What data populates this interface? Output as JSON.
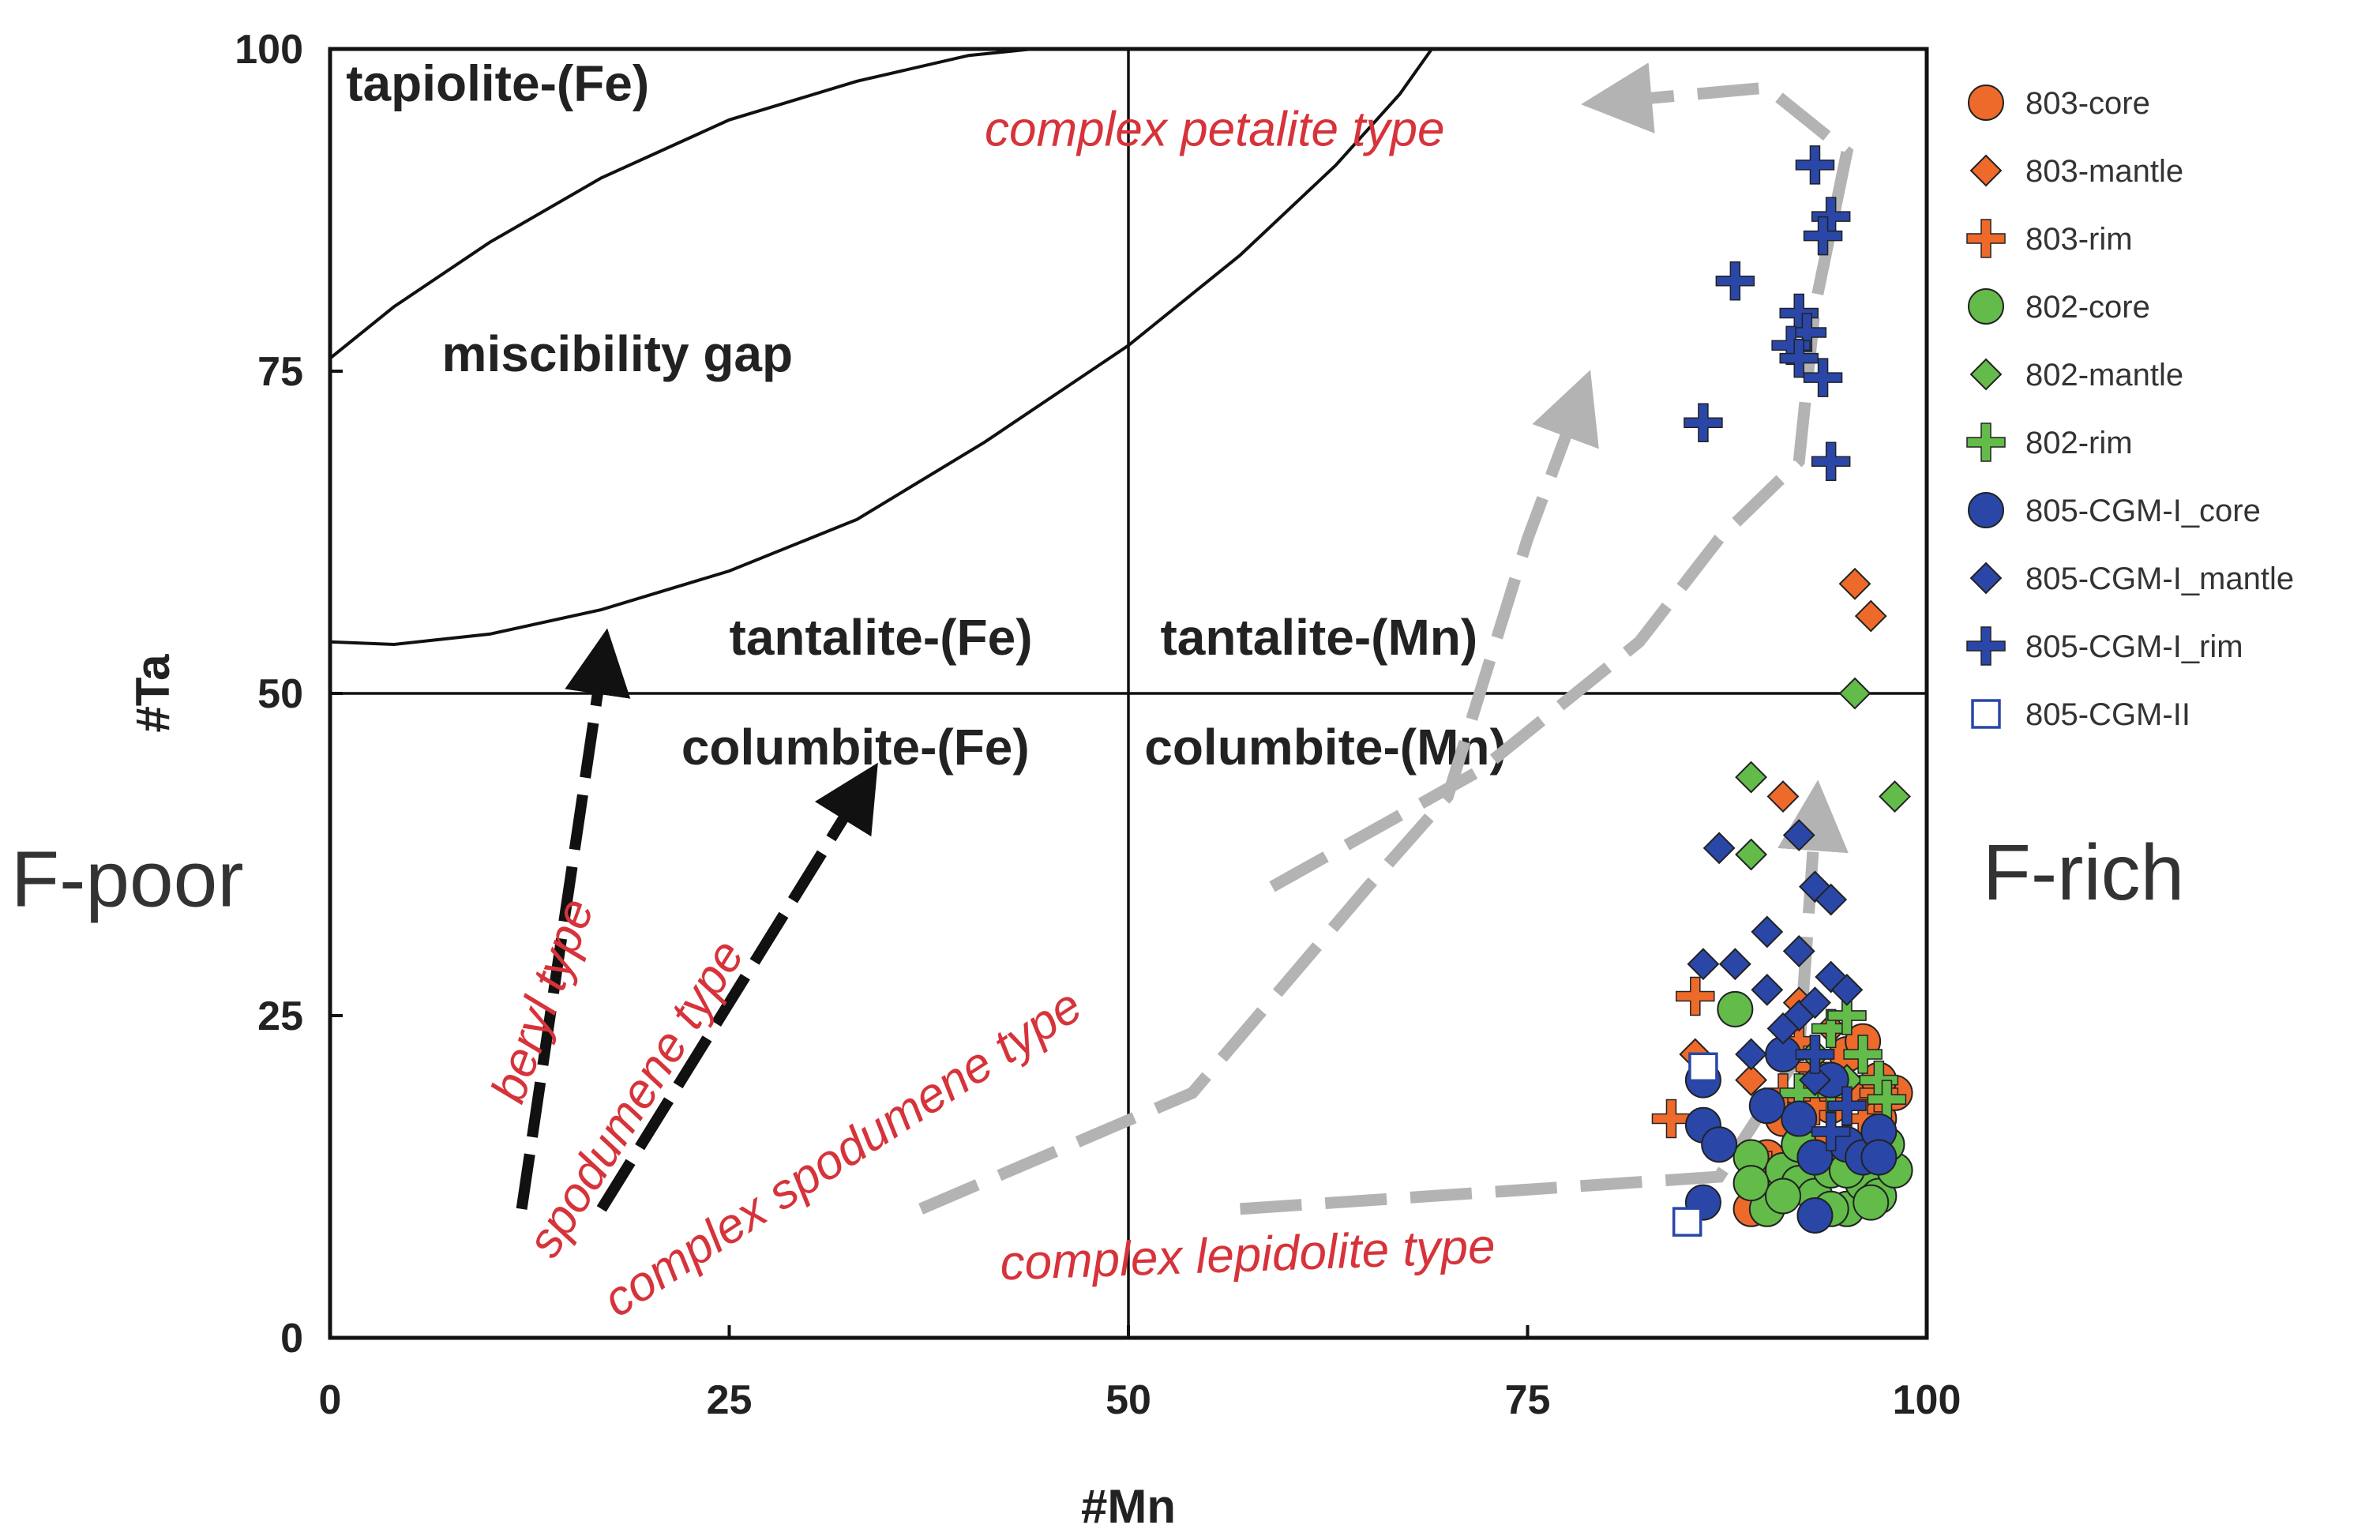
{
  "chart_data": {
    "type": "scatter",
    "xlabel": "#Mn",
    "ylabel": "#Ta",
    "xlim": [
      0,
      100
    ],
    "ylim": [
      0,
      100
    ],
    "xticks": [
      "0",
      "25",
      "50",
      "75",
      "100"
    ],
    "yticks": [
      "0",
      "25",
      "50",
      "75",
      "100"
    ],
    "dividers": {
      "x": 50,
      "y": 50
    },
    "regions": [
      {
        "text": "tapiolite-(Fe)",
        "x": 1,
        "y": 96
      },
      {
        "text": "miscibility gap",
        "x": 7,
        "y": 75
      },
      {
        "text": "tantalite-(Fe)",
        "x": 25,
        "y": 53
      },
      {
        "text": "tantalite-(Mn)",
        "x": 52,
        "y": 53
      },
      {
        "text": "columbite-(Fe)",
        "x": 22,
        "y": 44.5
      },
      {
        "text": "columbite-(Mn)",
        "x": 51,
        "y": 44.5
      }
    ],
    "side_labels": {
      "left": "F-poor",
      "right": "F-rich"
    },
    "curves": [
      {
        "name": "tapiolite-boundary",
        "points": [
          [
            0,
            76
          ],
          [
            4,
            80
          ],
          [
            10,
            85
          ],
          [
            17,
            90
          ],
          [
            25,
            94.5
          ],
          [
            33,
            97.5
          ],
          [
            40,
            99.5
          ],
          [
            44,
            100
          ]
        ]
      },
      {
        "name": "miscibility-gap-boundary",
        "points": [
          [
            0,
            54
          ],
          [
            4,
            53.8
          ],
          [
            10,
            54.6
          ],
          [
            17,
            56.5
          ],
          [
            25,
            59.5
          ],
          [
            33,
            63.5
          ],
          [
            41,
            69.5
          ],
          [
            50,
            77
          ],
          [
            57,
            84
          ],
          [
            63,
            91
          ],
          [
            67,
            96.5
          ],
          [
            69,
            100
          ]
        ]
      }
    ],
    "trend_arrows": [
      {
        "name": "beryl",
        "label": "beryl type",
        "color": "black",
        "from": [
          12,
          10
        ],
        "to": [
          17,
          52
        ]
      },
      {
        "name": "spodumene",
        "label": "spodumene type",
        "color": "black",
        "from": [
          17,
          10
        ],
        "to": [
          33,
          42
        ]
      },
      {
        "name": "complex-spodumene",
        "label": "complex spodumene type",
        "color": "gray",
        "points": [
          [
            37,
            10
          ],
          [
            54,
            19
          ],
          [
            65,
            35
          ],
          [
            70,
            42
          ],
          [
            75,
            62
          ],
          [
            78,
            72
          ]
        ]
      },
      {
        "name": "complex-petalite",
        "label": "complex petalite type",
        "color": "gray",
        "points": [
          [
            59,
            35
          ],
          [
            72,
            44
          ],
          [
            82,
            54
          ],
          [
            87,
            62
          ],
          [
            92,
            68
          ],
          [
            93,
            80
          ],
          [
            95,
            92
          ],
          [
            90,
            97
          ],
          [
            81,
            96
          ]
        ]
      },
      {
        "name": "complex-lepidolite",
        "label": "complex lepidolite type",
        "color": "gray",
        "points": [
          [
            57,
            10
          ],
          [
            87,
            12.5
          ],
          [
            92,
            22
          ],
          [
            93,
            40
          ]
        ]
      }
    ],
    "trend_labels": [
      {
        "text": "complex petalite type",
        "x": 41,
        "y": 92.5,
        "rotate": 0
      },
      {
        "text": "beryl type",
        "x": 12,
        "y": 18,
        "rotate": -70
      },
      {
        "text": "spodumene type",
        "x": 14,
        "y": 6,
        "rotate": -58
      },
      {
        "text": "complex spodumene type",
        "x": 18,
        "y": 1.5,
        "rotate": -33
      },
      {
        "text": "complex lepidolite type",
        "x": 42,
        "y": 4.5,
        "rotate": -2
      }
    ],
    "series": [
      {
        "name": "803-core",
        "marker": "circle",
        "color": "#ee6a2b",
        "points": [
          [
            92,
            18
          ],
          [
            94,
            15
          ],
          [
            96,
            19
          ],
          [
            97,
            17
          ],
          [
            98,
            19
          ],
          [
            95,
            22
          ],
          [
            93,
            20
          ],
          [
            89,
            10
          ],
          [
            90,
            14
          ],
          [
            91,
            17
          ],
          [
            96,
            23
          ],
          [
            94,
            18
          ],
          [
            97,
            20
          ]
        ]
      },
      {
        "name": "803-mantle",
        "marker": "diamond",
        "color": "#ee6a2b",
        "points": [
          [
            95.5,
            58.5
          ],
          [
            96.5,
            56
          ],
          [
            85.5,
            22
          ],
          [
            89,
            20
          ],
          [
            91,
            42
          ],
          [
            94,
            24
          ],
          [
            92,
            26
          ],
          [
            95,
            20
          ]
        ]
      },
      {
        "name": "803-rim",
        "marker": "plus",
        "color": "#ee6a2b",
        "points": [
          [
            84,
            17
          ],
          [
            85.5,
            26.5
          ],
          [
            91,
            19
          ],
          [
            92,
            23
          ],
          [
            93,
            18
          ],
          [
            94,
            16
          ],
          [
            95,
            25
          ],
          [
            96,
            17
          ],
          [
            97,
            19
          ],
          [
            90,
            13
          ],
          [
            93,
            21
          ],
          [
            95,
            15
          ]
        ]
      },
      {
        "name": "802-core",
        "marker": "circle",
        "color": "#63bb4a",
        "points": [
          [
            88,
            25.5
          ],
          [
            89,
            14
          ],
          [
            90,
            10
          ],
          [
            91,
            13
          ],
          [
            92,
            12
          ],
          [
            93,
            11
          ],
          [
            94,
            13
          ],
          [
            95,
            10
          ],
          [
            96,
            12
          ],
          [
            97,
            11
          ],
          [
            98,
            13
          ],
          [
            97.5,
            15
          ],
          [
            96,
            14
          ],
          [
            94,
            10
          ],
          [
            92,
            15
          ],
          [
            89,
            12
          ],
          [
            93,
            14
          ],
          [
            95,
            13
          ],
          [
            96.5,
            10.5
          ],
          [
            91,
            11
          ]
        ]
      },
      {
        "name": "802-mantle",
        "marker": "diamond",
        "color": "#63bb4a",
        "points": [
          [
            95.5,
            50
          ],
          [
            98,
            42
          ],
          [
            89,
            43.5
          ],
          [
            89,
            37.5
          ],
          [
            93,
            22
          ],
          [
            95,
            20
          ]
        ]
      },
      {
        "name": "802-rim",
        "marker": "plus",
        "color": "#63bb4a",
        "points": [
          [
            93,
            22
          ],
          [
            94,
            24
          ],
          [
            95,
            25
          ],
          [
            96,
            22
          ],
          [
            97,
            20
          ],
          [
            97.5,
            18.5
          ],
          [
            94,
            19
          ],
          [
            92,
            19
          ],
          [
            95,
            18
          ]
        ]
      },
      {
        "name": "805-CGM-I_core",
        "marker": "circle",
        "color": "#2a47a8",
        "points": [
          [
            86,
            20
          ],
          [
            86,
            16.5
          ],
          [
            86,
            10.5
          ],
          [
            87,
            15
          ],
          [
            92,
            17
          ],
          [
            93,
            9.5
          ],
          [
            95,
            15
          ],
          [
            96,
            14
          ],
          [
            97,
            16
          ],
          [
            94,
            20
          ],
          [
            90,
            18
          ],
          [
            91,
            22
          ],
          [
            93,
            14
          ],
          [
            97,
            14
          ]
        ]
      },
      {
        "name": "805-CGM-I_mantle",
        "marker": "diamond",
        "color": "#2a47a8",
        "points": [
          [
            87,
            38
          ],
          [
            92,
            39
          ],
          [
            93,
            35
          ],
          [
            94,
            34
          ],
          [
            90,
            31.5
          ],
          [
            92,
            30
          ],
          [
            86,
            29
          ],
          [
            88,
            29
          ],
          [
            90,
            27
          ],
          [
            92,
            25
          ],
          [
            94,
            28
          ],
          [
            91,
            24
          ],
          [
            93,
            26
          ],
          [
            95,
            27
          ],
          [
            89,
            22
          ],
          [
            93,
            20
          ]
        ]
      },
      {
        "name": "805-CGM-I_rim",
        "marker": "plus",
        "color": "#2a47a8",
        "points": [
          [
            93,
            91
          ],
          [
            94,
            87
          ],
          [
            93.5,
            85.5
          ],
          [
            88,
            82
          ],
          [
            92,
            79.5
          ],
          [
            92.5,
            78
          ],
          [
            91.5,
            77
          ],
          [
            92,
            76
          ],
          [
            93.5,
            74.5
          ],
          [
            86,
            71
          ],
          [
            94,
            68
          ],
          [
            93,
            22
          ],
          [
            95,
            18
          ],
          [
            94,
            16
          ]
        ]
      },
      {
        "name": "805-CGM-II",
        "marker": "square",
        "color": "#2a47a8",
        "points": [
          [
            85,
            9
          ],
          [
            86,
            21
          ]
        ]
      }
    ]
  }
}
